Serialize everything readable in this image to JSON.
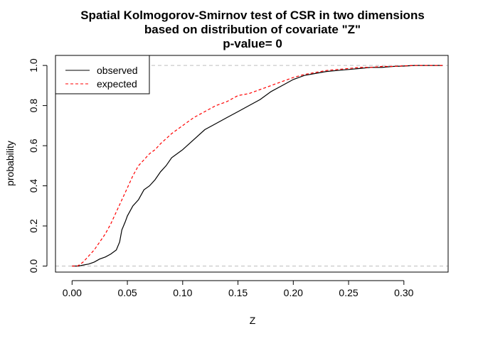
{
  "chart_data": {
    "type": "line",
    "title_lines": [
      "Spatial Kolmogorov-Smirnov test of CSR in two dimensions",
      "based on distribution of covariate \"Z\"",
      "p-value= 0"
    ],
    "xlabel": "Z",
    "ylabel": "probability",
    "xlim": [
      -0.015,
      0.34
    ],
    "ylim": [
      -0.03,
      1.05
    ],
    "xticks": [
      0.0,
      0.05,
      0.1,
      0.15,
      0.2,
      0.25,
      0.3
    ],
    "xtick_labels": [
      "0.00",
      "0.05",
      "0.10",
      "0.15",
      "0.20",
      "0.25",
      "0.30"
    ],
    "yticks": [
      0.0,
      0.2,
      0.4,
      0.6,
      0.8,
      1.0
    ],
    "ytick_labels": [
      "0.0",
      "0.2",
      "0.4",
      "0.6",
      "0.8",
      "1.0"
    ],
    "reference_lines": [
      0,
      1
    ],
    "reference_color": "#bebebe",
    "legend": {
      "position": "top-left"
    },
    "series": [
      {
        "name": "observed",
        "color": "#000000",
        "dash": "solid",
        "x": [
          0.0,
          0.006,
          0.01,
          0.015,
          0.02,
          0.025,
          0.03,
          0.035,
          0.04,
          0.043,
          0.045,
          0.048,
          0.05,
          0.055,
          0.06,
          0.065,
          0.07,
          0.075,
          0.08,
          0.085,
          0.09,
          0.1,
          0.11,
          0.12,
          0.13,
          0.14,
          0.15,
          0.16,
          0.17,
          0.18,
          0.19,
          0.2,
          0.21,
          0.22,
          0.23,
          0.24,
          0.25,
          0.26,
          0.27,
          0.28,
          0.29,
          0.3,
          0.31,
          0.32,
          0.335
        ],
        "y": [
          0.0,
          0.0,
          0.005,
          0.01,
          0.02,
          0.035,
          0.045,
          0.06,
          0.08,
          0.12,
          0.18,
          0.22,
          0.25,
          0.3,
          0.33,
          0.38,
          0.4,
          0.43,
          0.47,
          0.5,
          0.54,
          0.58,
          0.63,
          0.68,
          0.71,
          0.74,
          0.77,
          0.8,
          0.83,
          0.87,
          0.9,
          0.93,
          0.95,
          0.96,
          0.97,
          0.975,
          0.98,
          0.985,
          0.99,
          0.99,
          0.995,
          0.997,
          1.0,
          1.0,
          1.0
        ]
      },
      {
        "name": "expected",
        "color": "#ff0000",
        "dash": "dashed",
        "x": [
          0.0,
          0.005,
          0.01,
          0.015,
          0.02,
          0.025,
          0.03,
          0.035,
          0.04,
          0.045,
          0.05,
          0.055,
          0.06,
          0.065,
          0.07,
          0.075,
          0.08,
          0.09,
          0.1,
          0.11,
          0.12,
          0.13,
          0.14,
          0.15,
          0.16,
          0.17,
          0.18,
          0.19,
          0.2,
          0.21,
          0.22,
          0.23,
          0.24,
          0.25,
          0.26,
          0.27,
          0.28,
          0.29,
          0.3,
          0.31,
          0.32,
          0.335
        ],
        "y": [
          0.0,
          0.0,
          0.02,
          0.05,
          0.08,
          0.12,
          0.16,
          0.21,
          0.27,
          0.33,
          0.39,
          0.45,
          0.5,
          0.53,
          0.56,
          0.58,
          0.61,
          0.66,
          0.7,
          0.74,
          0.77,
          0.8,
          0.82,
          0.85,
          0.86,
          0.88,
          0.9,
          0.92,
          0.94,
          0.955,
          0.965,
          0.975,
          0.98,
          0.985,
          0.99,
          0.99,
          0.995,
          0.995,
          0.998,
          1.0,
          1.0,
          1.0
        ]
      }
    ]
  }
}
